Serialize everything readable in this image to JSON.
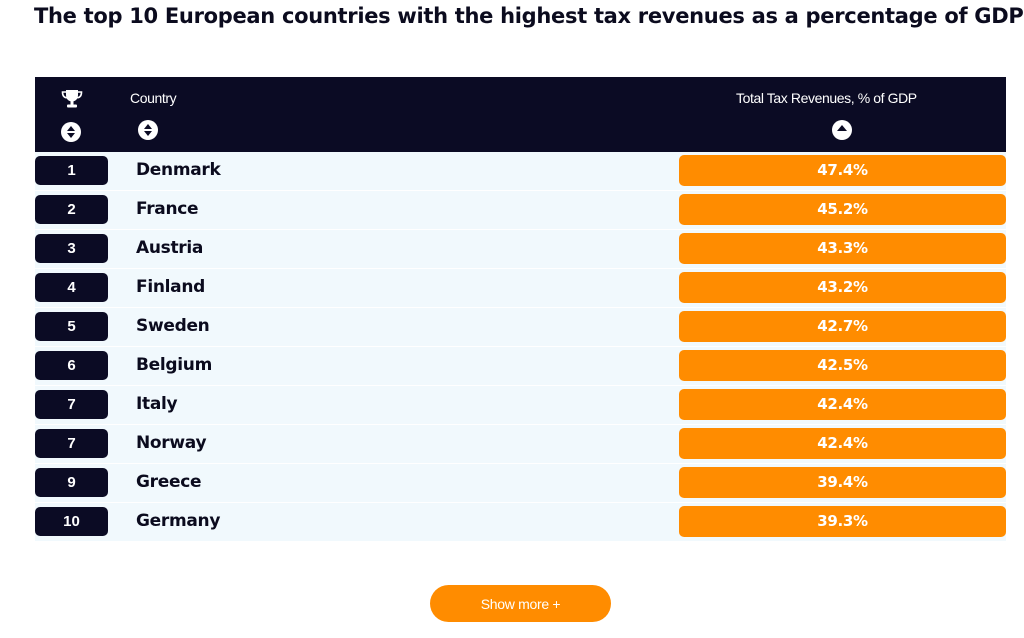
{
  "title": "The top 10 European countries with the highest tax revenues as a percentage of GDP",
  "header": {
    "rank_icon": "trophy-icon",
    "country_label": "Country",
    "value_label": "Total Tax Revenues, % of GDP"
  },
  "colors": {
    "header_bg": "#0b0b24",
    "accent": "#ff8c00",
    "row_bg": "#f1f9fd"
  },
  "show_more_label": "Show more +",
  "chart_data": {
    "type": "table",
    "title": "The top 10 European countries with the highest tax revenues as a percentage of GDP",
    "columns": [
      "",
      "Country",
      "Total Tax Revenues, % of GDP"
    ],
    "rows": [
      {
        "rank": "1",
        "country": "Denmark",
        "value": "47.4%"
      },
      {
        "rank": "2",
        "country": "France",
        "value": "45.2%"
      },
      {
        "rank": "3",
        "country": "Austria",
        "value": "43.3%"
      },
      {
        "rank": "4",
        "country": "Finland",
        "value": "43.2%"
      },
      {
        "rank": "5",
        "country": "Sweden",
        "value": "42.7%"
      },
      {
        "rank": "6",
        "country": "Belgium",
        "value": "42.5%"
      },
      {
        "rank": "7",
        "country": "Italy",
        "value": "42.4%"
      },
      {
        "rank": "7",
        "country": "Norway",
        "value": "42.4%"
      },
      {
        "rank": "9",
        "country": "Greece",
        "value": "39.4%"
      },
      {
        "rank": "10",
        "country": "Germany",
        "value": "39.3%"
      }
    ]
  }
}
